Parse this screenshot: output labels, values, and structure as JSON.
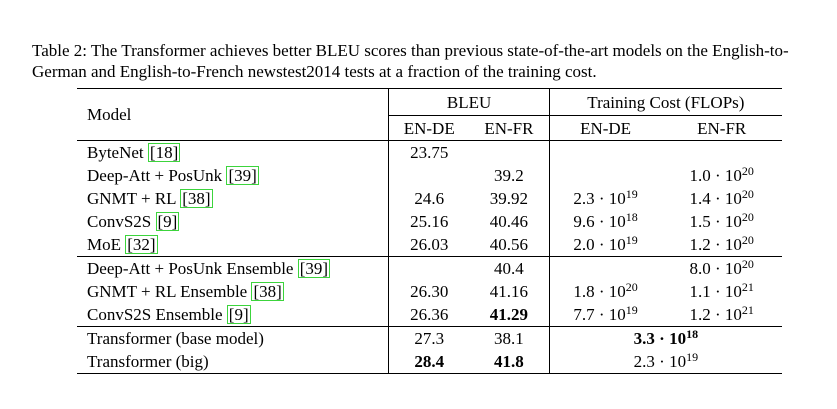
{
  "caption": "Table 2: The Transformer achieves better BLEU scores than previous state-of-the-art models on the English-to-German and English-to-French newstest2014 tests at a fraction of the training cost.",
  "header": {
    "model": "Model",
    "bleu": "BLEU",
    "training_cost": "Training Cost (FLOPs)",
    "en_de": "EN-DE",
    "en_fr": "EN-FR"
  },
  "rows": [
    {
      "model": "ByteNet",
      "cite": "[18]",
      "bleu_ende": "23.75",
      "bleu_enfr": "",
      "tc_ende": {
        "base": "",
        "exp": ""
      },
      "tc_enfr": {
        "base": "",
        "exp": ""
      }
    },
    {
      "model": "Deep-Att + PosUnk",
      "cite": "[39]",
      "bleu_ende": "",
      "bleu_enfr": "39.2",
      "tc_ende": {
        "base": "",
        "exp": ""
      },
      "tc_enfr": {
        "base": "1.0 · 10",
        "exp": "20"
      }
    },
    {
      "model": "GNMT + RL",
      "cite": "[38]",
      "bleu_ende": "24.6",
      "bleu_enfr": "39.92",
      "tc_ende": {
        "base": "2.3 · 10",
        "exp": "19"
      },
      "tc_enfr": {
        "base": "1.4 · 10",
        "exp": "20"
      }
    },
    {
      "model": "ConvS2S",
      "cite": "[9]",
      "bleu_ende": "25.16",
      "bleu_enfr": "40.46",
      "tc_ende": {
        "base": "9.6 · 10",
        "exp": "18"
      },
      "tc_enfr": {
        "base": "1.5 · 10",
        "exp": "20"
      }
    },
    {
      "model": "MoE",
      "cite": "[32]",
      "bleu_ende": "26.03",
      "bleu_enfr": "40.56",
      "tc_ende": {
        "base": "2.0 · 10",
        "exp": "19"
      },
      "tc_enfr": {
        "base": "1.2 · 10",
        "exp": "20"
      }
    },
    {
      "model": "Deep-Att + PosUnk Ensemble",
      "cite": "[39]",
      "bleu_ende": "",
      "bleu_enfr": "40.4",
      "tc_ende": {
        "base": "",
        "exp": ""
      },
      "tc_enfr": {
        "base": "8.0 · 10",
        "exp": "20"
      }
    },
    {
      "model": "GNMT + RL Ensemble",
      "cite": "[38]",
      "bleu_ende": "26.30",
      "bleu_enfr": "41.16",
      "tc_ende": {
        "base": "1.8 · 10",
        "exp": "20"
      },
      "tc_enfr": {
        "base": "1.1 · 10",
        "exp": "21"
      }
    },
    {
      "model": "ConvS2S Ensemble",
      "cite": "[9]",
      "bleu_ende": "26.36",
      "bleu_enfr": "41.29",
      "tc_ende": {
        "base": "7.7 · 10",
        "exp": "19"
      },
      "tc_enfr": {
        "base": "1.2 · 10",
        "exp": "21"
      }
    },
    {
      "model": "Transformer (base model)",
      "cite": "",
      "bleu_ende": "27.3",
      "bleu_enfr": "38.1",
      "tc_both": {
        "base": "3.3 · 10",
        "exp": "18"
      }
    },
    {
      "model": "Transformer (big)",
      "cite": "",
      "bleu_ende": "28.4",
      "bleu_enfr": "41.8",
      "tc_both": {
        "base": "2.3 · 10",
        "exp": "19"
      }
    }
  ]
}
